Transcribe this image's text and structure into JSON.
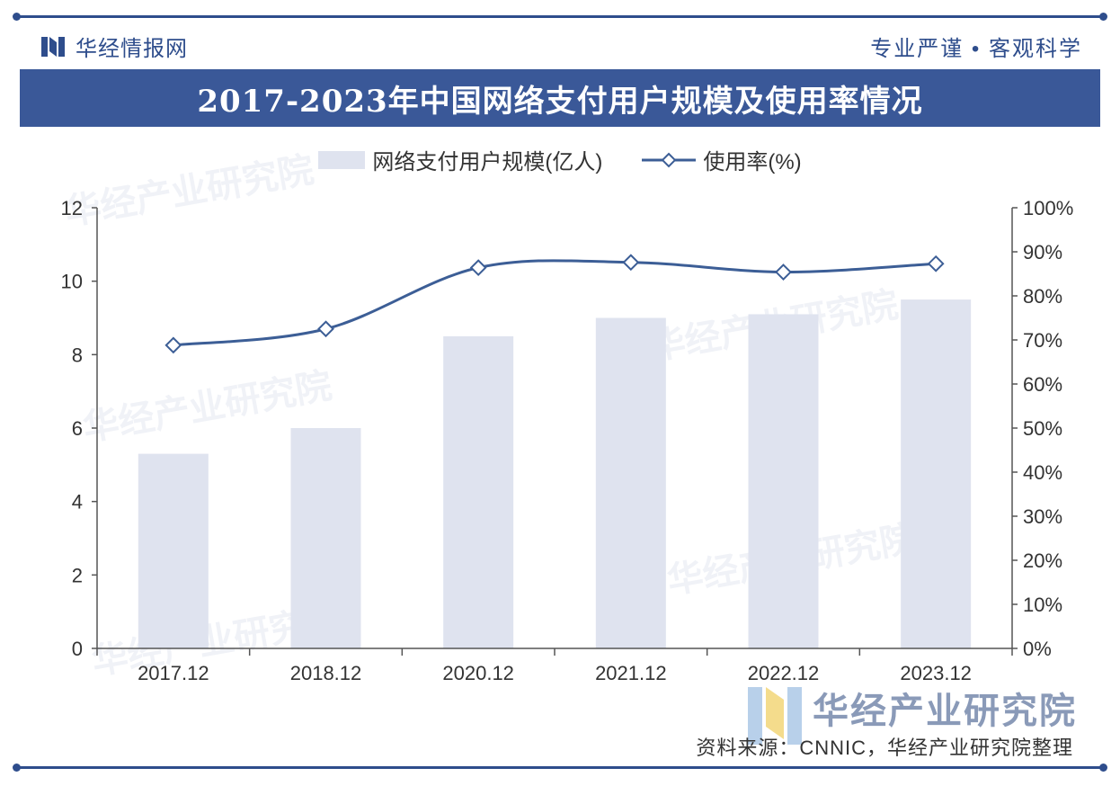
{
  "header": {
    "brand": "华经情报网",
    "slogan": "专业严谨 • 客观科学",
    "title": "2017-2023年中国网络支付用户规模及使用率情况"
  },
  "legend": {
    "bar_label": "网络支付用户规模(亿人)",
    "line_label": "使用率(%)"
  },
  "watermark": "华经产业研究院",
  "footer": {
    "org": "华经产业研究院",
    "source": "资料来源：CNNIC，华经产业研究院整理"
  },
  "colors": {
    "bar": "#dfe3ef",
    "line": "#3c5e96",
    "accent": "#2e4d8c",
    "axis": "#555555"
  },
  "chart_data": {
    "type": "bar",
    "categories": [
      "2017.12",
      "2018.12",
      "2020.12",
      "2021.12",
      "2022.12",
      "2023.12"
    ],
    "series": [
      {
        "name": "网络支付用户规模(亿人)",
        "type": "bar",
        "axis": "left",
        "values": [
          5.3,
          6.0,
          8.5,
          9.0,
          9.1,
          9.5
        ]
      },
      {
        "name": "使用率(%)",
        "type": "line",
        "axis": "right",
        "values": [
          68.8,
          72.5,
          86.4,
          87.6,
          85.4,
          87.3
        ]
      }
    ],
    "y_left": {
      "min": 0,
      "max": 12,
      "ticks": [
        "0",
        "2",
        "4",
        "6",
        "8",
        "10",
        "12"
      ]
    },
    "y_right": {
      "min": 0,
      "max": 100,
      "ticks": [
        "0%",
        "10%",
        "20%",
        "30%",
        "40%",
        "50%",
        "60%",
        "70%",
        "80%",
        "90%",
        "100%"
      ]
    },
    "grid": false,
    "legend_position": "top-center"
  }
}
